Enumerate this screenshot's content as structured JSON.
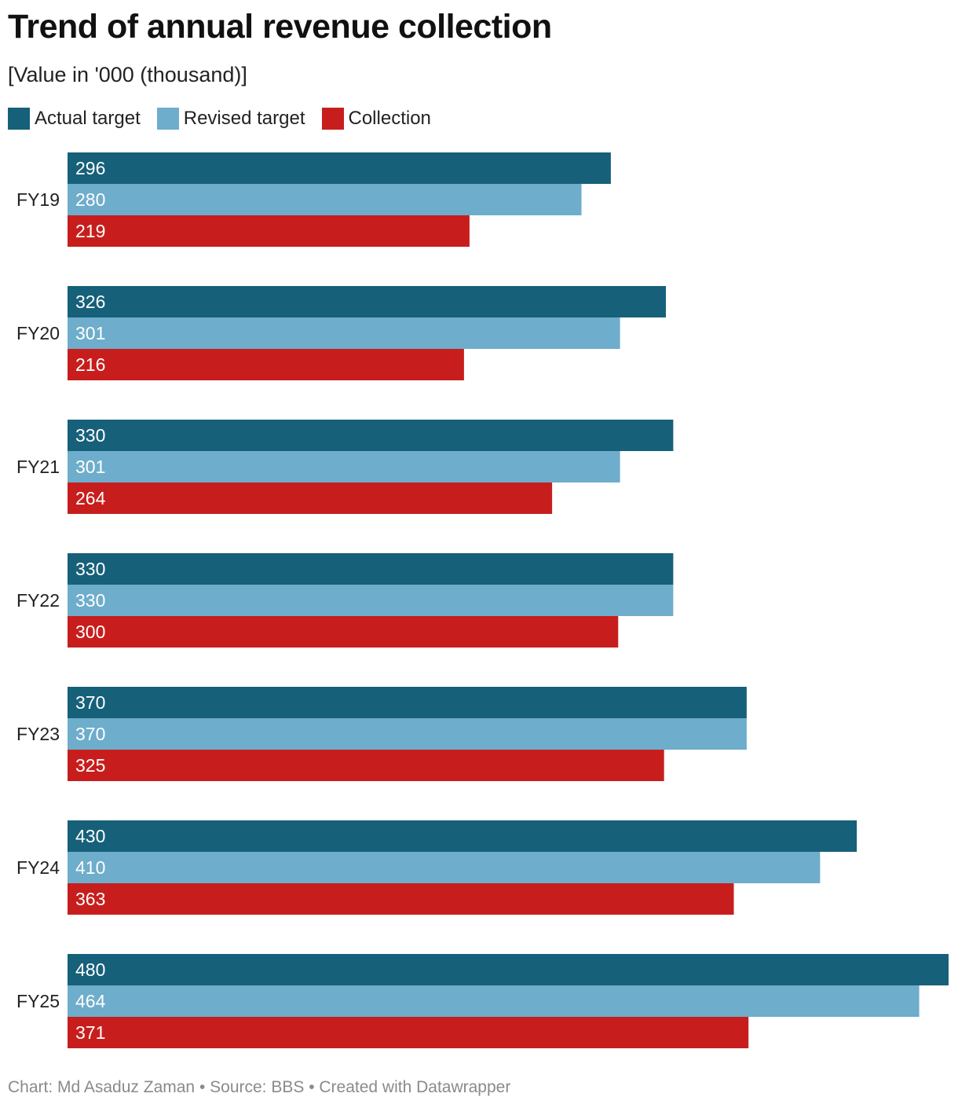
{
  "chart_data": {
    "type": "bar",
    "orientation": "horizontal",
    "title": "Trend of annual revenue collection",
    "subtitle": "[Value in '000 (thousand)]",
    "categories": [
      "FY19",
      "FY20",
      "FY21",
      "FY22",
      "FY23",
      "FY24",
      "FY25"
    ],
    "series": [
      {
        "name": "Actual target",
        "color": "#16607a",
        "values": [
          296,
          326,
          330,
          330,
          370,
          430,
          480
        ]
      },
      {
        "name": "Revised target",
        "color": "#6eadcb",
        "values": [
          280,
          301,
          301,
          330,
          370,
          410,
          464
        ]
      },
      {
        "name": "Collection",
        "color": "#c71e1d",
        "values": [
          219,
          216,
          264,
          300,
          325,
          363,
          371
        ]
      }
    ],
    "xlim": [
      0,
      480
    ],
    "grid": false,
    "legend_position": "top-left",
    "footer": "Chart: Md Asaduz Zaman • Source: BBS • Created with Datawrapper"
  }
}
